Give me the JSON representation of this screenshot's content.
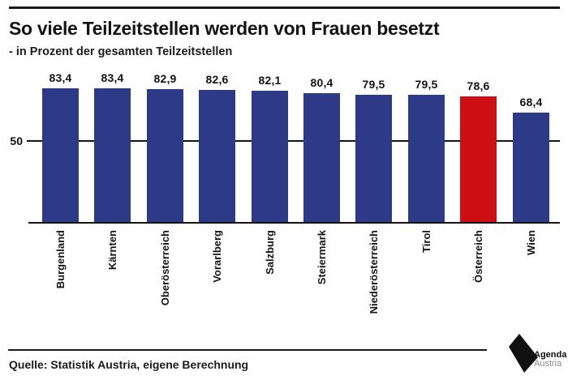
{
  "header": {
    "title": "So viele Teilzeitstellen werden von Frauen besetzt",
    "subtitle": "- in Prozent der gesamten Teilzeitstellen"
  },
  "chart_data": {
    "type": "bar",
    "title": "So viele Teilzeitstellen werden von Frauen besetzt",
    "subtitle": "- in Prozent der gesamten Teilzeitstellen",
    "categories": [
      "Burgenland",
      "Kärnten",
      "Oberösterreich",
      "Vorarlberg",
      "Salzburg",
      "Steiermark",
      "Niederösterreich",
      "Tirol",
      "Österreich",
      "Wien"
    ],
    "values": [
      83.4,
      83.4,
      82.9,
      82.6,
      82.1,
      80.4,
      79.5,
      79.5,
      78.6,
      68.4
    ],
    "value_labels": [
      "83,4",
      "83,4",
      "82,9",
      "82,6",
      "82,1",
      "80,4",
      "79,5",
      "79,5",
      "78,6",
      "68,4"
    ],
    "xlabel": "",
    "ylabel": "",
    "ylim": [
      0,
      88
    ],
    "yticks": [
      50
    ],
    "ytick_label": "50",
    "gridline_value": 50,
    "grid": "single horizontal line at 50, drawn behind bars",
    "legend": "none",
    "bar_color": "#2d3a87",
    "highlight_color": "#cd0f14",
    "highlight_index": 8,
    "highlight_category": "Österreich",
    "x_label_rotation": 90
  },
  "footer": {
    "source": "Quelle: Statistik Austria, eigene Berechnung",
    "logo": {
      "line1": "Agenda",
      "line2": "Austria"
    }
  }
}
